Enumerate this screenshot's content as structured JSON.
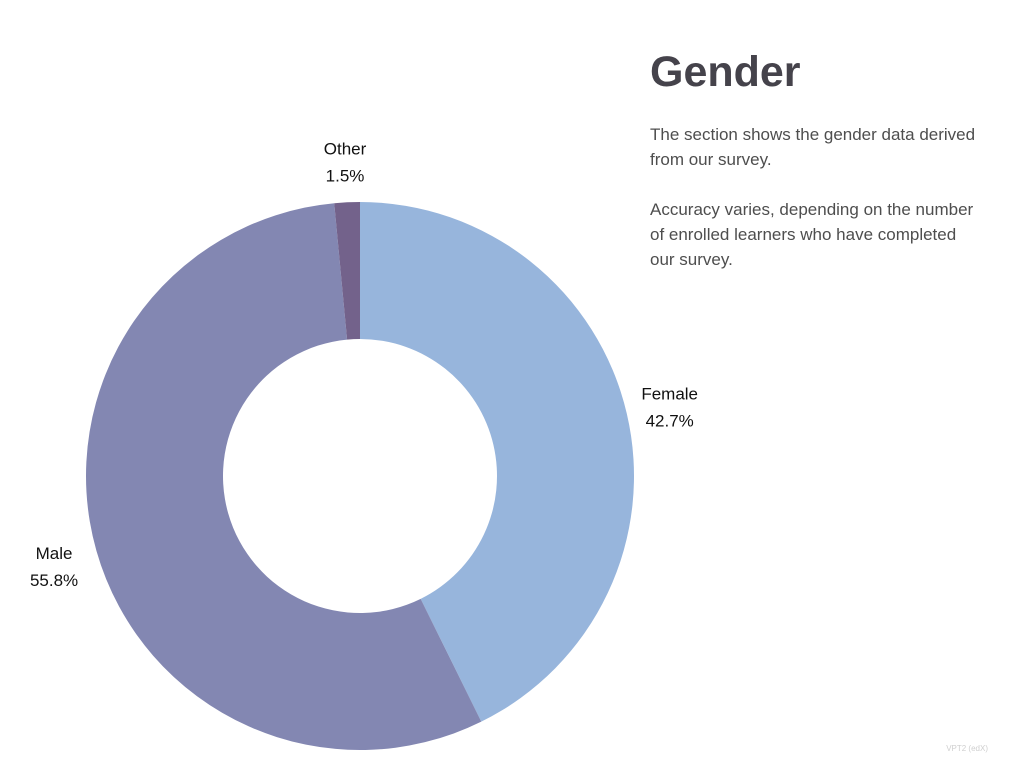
{
  "panel": {
    "title": "Gender",
    "paragraph_1": "The section shows the gender data derived from our survey.",
    "paragraph_2": "Accuracy varies, depending on the number of enrolled learners who have completed our survey."
  },
  "footer": {
    "note": "VPT2 (edX)"
  },
  "chart_data": {
    "type": "pie",
    "variant": "donut",
    "categories": [
      "Female",
      "Male",
      "Other"
    ],
    "values": [
      42.7,
      55.8,
      1.5
    ],
    "value_labels": [
      "42.7%",
      "55.8%",
      "1.5%"
    ],
    "unit": "%",
    "colors": [
      "#97b5dc",
      "#8387b2",
      "#73628b"
    ],
    "start_angle": "12 o'clock",
    "direction": "clockwise",
    "legend": "none",
    "labels": "outside slices"
  }
}
